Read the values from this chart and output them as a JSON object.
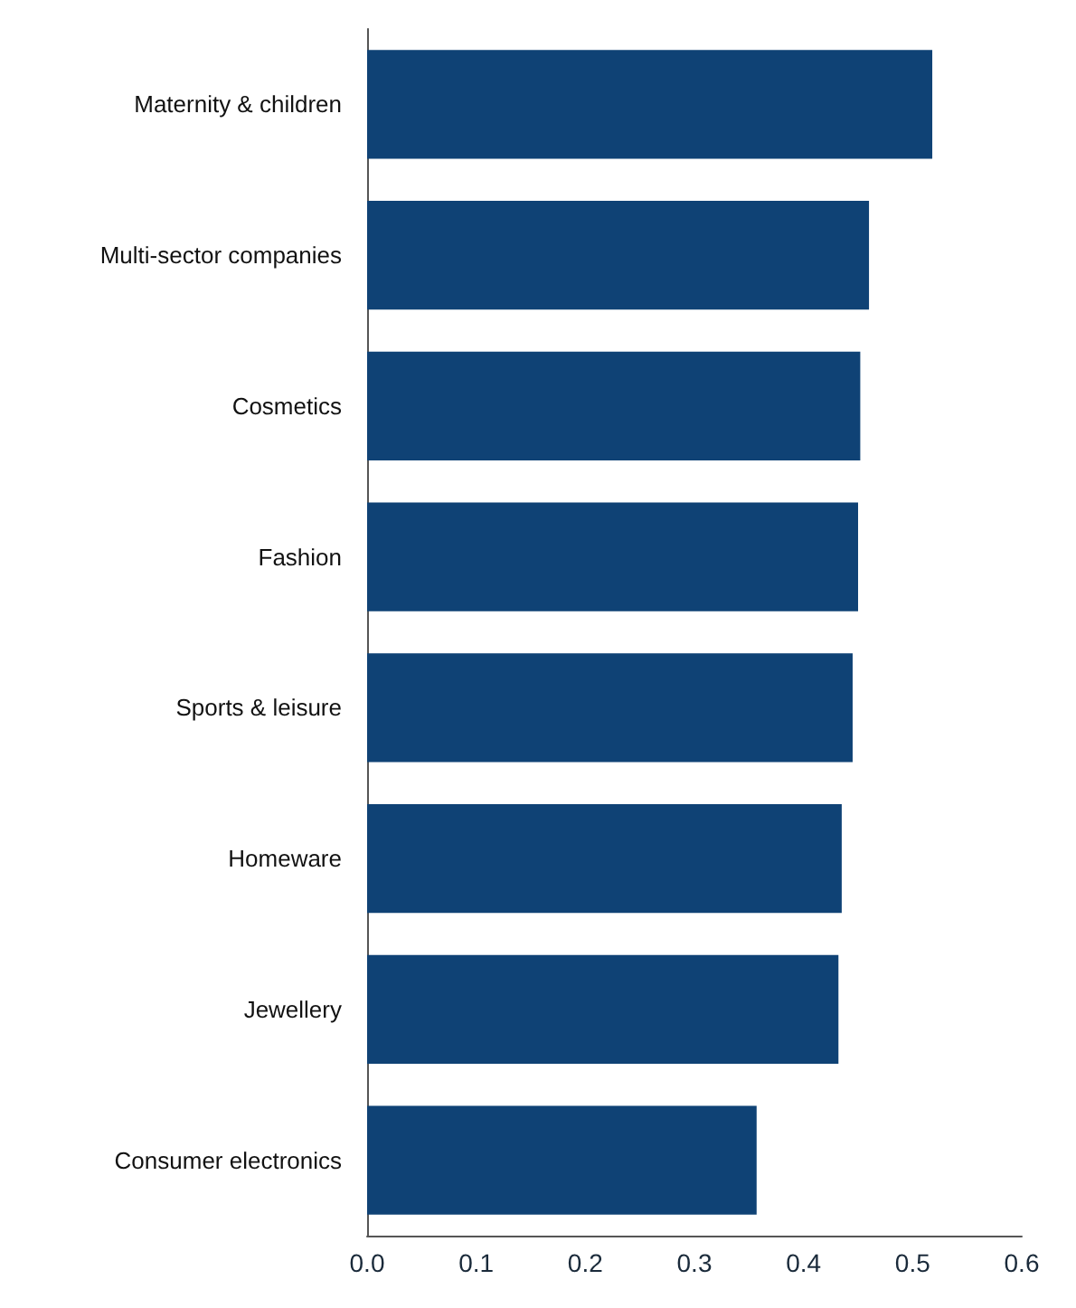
{
  "chart_data": {
    "type": "bar",
    "orientation": "horizontal",
    "categories": [
      "Maternity & children",
      "Multi-sector companies",
      "Cosmetics",
      "Fashion",
      "Sports & leisure",
      "Homeware",
      "Jewellery",
      "Consumer electronics"
    ],
    "values": [
      0.518,
      0.46,
      0.452,
      0.45,
      0.445,
      0.435,
      0.432,
      0.357
    ],
    "color": "#0f4275",
    "xlim": [
      0,
      0.6
    ],
    "xticks": [
      {
        "value": 0,
        "label": "0.0"
      },
      0.1,
      0.2,
      0.3,
      0.4,
      0.5,
      0.6
    ],
    "grid": false
  }
}
